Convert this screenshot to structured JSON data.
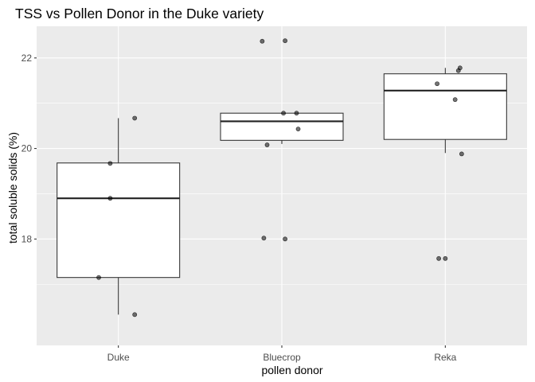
{
  "chart_data": {
    "type": "box",
    "title": "TSS vs Pollen Donor in the Duke variety",
    "xlabel": "pollen donor",
    "ylabel": "total soluble solids (%)",
    "categories": [
      "Duke",
      "Bluecrop",
      "Reka"
    ],
    "y_ticks": [
      18,
      20,
      22
    ],
    "ylim": [
      15.65,
      22.7
    ],
    "grid": true,
    "background": "#ebebeb",
    "boxes": [
      {
        "category": "Duke",
        "lower_whisker": 16.33,
        "q1": 17.15,
        "median": 18.9,
        "q3": 19.68,
        "upper_whisker": 20.67
      },
      {
        "category": "Bluecrop",
        "lower_whisker": 20.1,
        "q1": 20.18,
        "median": 20.6,
        "q3": 20.78,
        "upper_whisker": 20.78
      },
      {
        "category": "Reka",
        "lower_whisker": 19.9,
        "q1": 20.2,
        "median": 21.28,
        "q3": 21.65,
        "upper_whisker": 21.78
      }
    ],
    "points": [
      {
        "category": "Duke",
        "jitter": 0.1,
        "y": 20.67
      },
      {
        "category": "Duke",
        "jitter": -0.05,
        "y": 19.67
      },
      {
        "category": "Duke",
        "jitter": -0.05,
        "y": 18.9
      },
      {
        "category": "Duke",
        "jitter": -0.12,
        "y": 17.15
      },
      {
        "category": "Duke",
        "jitter": 0.1,
        "y": 16.33
      },
      {
        "category": "Bluecrop",
        "jitter": -0.12,
        "y": 22.37
      },
      {
        "category": "Bluecrop",
        "jitter": 0.02,
        "y": 22.38
      },
      {
        "category": "Bluecrop",
        "jitter": 0.01,
        "y": 20.78
      },
      {
        "category": "Bluecrop",
        "jitter": 0.09,
        "y": 20.78
      },
      {
        "category": "Bluecrop",
        "jitter": 0.1,
        "y": 20.43
      },
      {
        "category": "Bluecrop",
        "jitter": -0.09,
        "y": 20.08
      },
      {
        "category": "Bluecrop",
        "jitter": -0.11,
        "y": 18.02
      },
      {
        "category": "Bluecrop",
        "jitter": 0.02,
        "y": 18.0
      },
      {
        "category": "Reka",
        "jitter": 0.09,
        "y": 21.78
      },
      {
        "category": "Reka",
        "jitter": 0.08,
        "y": 21.72
      },
      {
        "category": "Reka",
        "jitter": -0.05,
        "y": 21.43
      },
      {
        "category": "Reka",
        "jitter": 0.06,
        "y": 21.08
      },
      {
        "category": "Reka",
        "jitter": 0.1,
        "y": 19.88
      },
      {
        "category": "Reka",
        "jitter": -0.04,
        "y": 17.57
      },
      {
        "category": "Reka",
        "jitter": 0.0,
        "y": 17.57
      }
    ]
  }
}
